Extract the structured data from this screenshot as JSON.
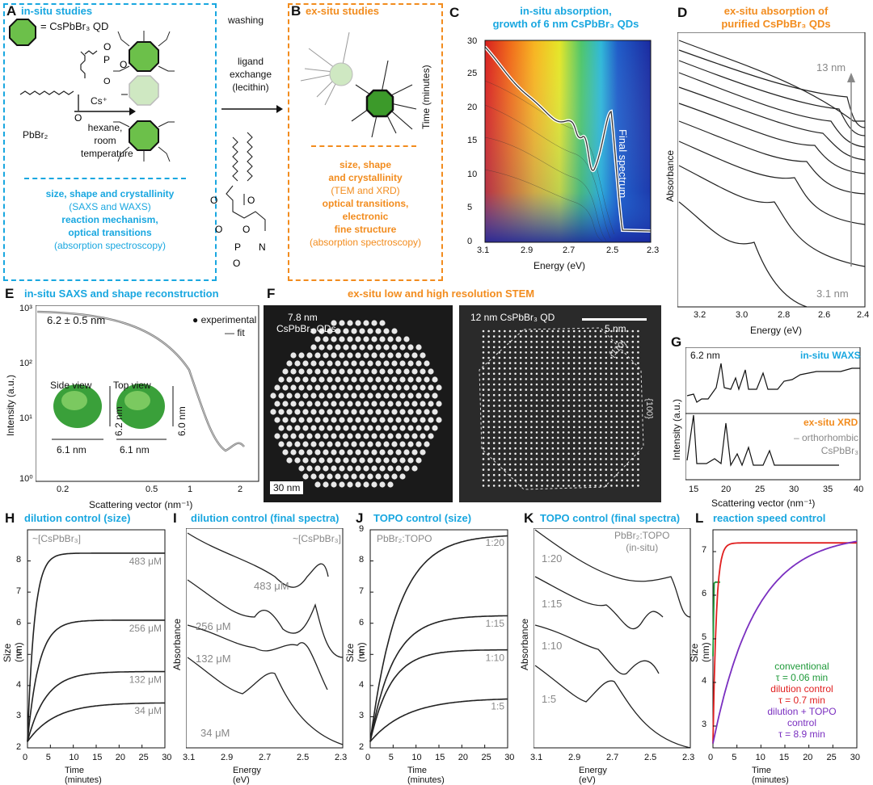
{
  "panelA": {
    "letter": "A",
    "title": "in-situ studies",
    "legend_qd": "= CsPbBr₃ QD",
    "precursor1": "PbBr₂",
    "precursor2": "Cs⁺",
    "conditions": [
      "hexane,",
      "room",
      "temperature"
    ],
    "bottom_bold1": "size, shape and crystallinity",
    "bottom_norm1": "(SAXS and WAXS)",
    "bottom_bold2": "reaction mechanism,",
    "bottom_bold3": "optical transitions",
    "bottom_norm2": "(absorption spectroscopy)"
  },
  "arrowMid": {
    "washing": "washing",
    "ligand1": "ligand",
    "ligand2": "exchange",
    "ligand3": "(lecithin)"
  },
  "panelB": {
    "letter": "B",
    "title": "ex-situ studies",
    "l1": "size, shape",
    "l2": "and crystallinity",
    "l3": "(TEM and XRD)",
    "l4": "optical transitions,",
    "l5": "electronic",
    "l6": "fine structure",
    "l7": "(absorption spectroscopy)"
  },
  "panelC": {
    "letter": "C",
    "title1": "in-situ absorption,",
    "title2": "growth of 6 nm CsPbBr₃ QDs",
    "ylabel": "Time (minutes)",
    "xlabel": "Energy (eV)",
    "annotation": "Final spectrum",
    "xticks": [
      "3.1",
      "2.9",
      "2.7",
      "2.5",
      "2.3"
    ],
    "yticks": [
      "0",
      "5",
      "10",
      "15",
      "20",
      "25",
      "30"
    ]
  },
  "panelD": {
    "letter": "D",
    "title1": "ex-situ absorption of",
    "title2": "purified CsPbBr₃ QDs",
    "ylabel": "Absorbance",
    "xlabel": "Energy (eV)",
    "top_label": "13 nm",
    "bottom_label": "3.1 nm",
    "xticks": [
      "3.2",
      "3.0",
      "2.8",
      "2.6",
      "2.4"
    ]
  },
  "panelE": {
    "letter": "E",
    "title": "in-situ SAXS and shape reconstruction",
    "size": "6.2 ± 0.5 nm",
    "legend_exp": "experimental",
    "legend_fit": "fit",
    "side": "Side view",
    "top": "Top view",
    "d1": "6.2 nm",
    "d2": "6.0 nm",
    "w1": "6.1 nm",
    "w2": "6.1 nm",
    "ylabel": "Intensity (a.u.)",
    "xlabel": "Scattering vector (nm⁻¹)",
    "xticks": [
      "0.2",
      "0.5",
      "1",
      "2"
    ],
    "yticks": [
      "10³",
      "10²",
      "10¹",
      "10⁰"
    ]
  },
  "panelF": {
    "letter": "F",
    "title": "ex-situ low and high resolution STEM",
    "left_label1": "7.8 nm",
    "left_label2": "CsPbBr₃ QDs",
    "scale_left": "30 nm",
    "right_label": "12 nm CsPbBr₃ QD",
    "scale_right": "5 nm",
    "facet1": "{110}",
    "facet2": "{100}"
  },
  "panelG": {
    "letter": "G",
    "size": "6.2 nm",
    "waxs": "in-situ WAXS",
    "xrd": "ex-situ XRD",
    "legend1": "orthorhombic",
    "legend2": "CsPbBr₃",
    "ylabel": "Intensity (a.u.)",
    "xlabel": "Scattering vector (nm⁻¹)",
    "xticks": [
      "15",
      "20",
      "25",
      "30",
      "35",
      "40"
    ]
  },
  "panelH": {
    "letter": "H",
    "title": "dilution control (size)",
    "corner": "~[CsPbBr₃]",
    "ylabel": "Size (nm)",
    "xlabel": "Time (minutes)",
    "xticks": [
      "0",
      "5",
      "10",
      "15",
      "20",
      "25",
      "30"
    ],
    "yticks": [
      "2",
      "3",
      "4",
      "5",
      "6",
      "7",
      "8"
    ],
    "curves": [
      "483 μM",
      "256 μM",
      "132 μM",
      "34 μM"
    ]
  },
  "panelI": {
    "letter": "I",
    "title": "dilution control (final spectra)",
    "corner": "~[CsPbBr₃]",
    "ylabel": "Absorbance",
    "xlabel": "Energy (eV)",
    "xticks": [
      "3.1",
      "2.9",
      "2.7",
      "2.5",
      "2.3"
    ],
    "curves": [
      "483 μM",
      "256 μM",
      "132 μM",
      "34 μM"
    ]
  },
  "panelJ": {
    "letter": "J",
    "title": "TOPO control (size)",
    "corner": "PbBr₂:TOPO",
    "ylabel": "Size (nm)",
    "xlabel": "Time (minutes)",
    "xticks": [
      "0",
      "5",
      "10",
      "15",
      "20",
      "25",
      "30"
    ],
    "yticks": [
      "2",
      "3",
      "4",
      "5",
      "6",
      "7",
      "8",
      "9"
    ],
    "curves": [
      "1:20",
      "1:15",
      "1:10",
      "1:5"
    ]
  },
  "panelK": {
    "letter": "K",
    "title": "TOPO control (final spectra)",
    "corner1": "PbBr₂:TOPO",
    "corner2": "(in-situ)",
    "ylabel": "Absorbance",
    "xlabel": "Energy (eV)",
    "xticks": [
      "3.1",
      "2.9",
      "2.7",
      "2.5",
      "2.3"
    ],
    "curves": [
      "1:20",
      "1:15",
      "1:10",
      "1:5"
    ]
  },
  "panelL": {
    "letter": "L",
    "title": "reaction speed control",
    "ylabel": "Size (nm)",
    "xlabel": "Time (minutes)",
    "xticks": [
      "0",
      "5",
      "10",
      "15",
      "20",
      "25",
      "30"
    ],
    "yticks": [
      "3",
      "4",
      "5",
      "6",
      "7"
    ],
    "leg1": "conventional",
    "leg1t": "τ = 0.06 min",
    "leg2": "dilution control",
    "leg2t": "τ = 0.7 min",
    "leg3": "dilution + TOPO",
    "leg3b": "control",
    "leg3t": "τ = 8.9 min",
    "colors": {
      "green": "#1f9a3a",
      "red": "#e02020",
      "purple": "#7a2fc0"
    }
  },
  "chart_data": [
    {
      "type": "line",
      "title": "dilution control (size)",
      "xlabel": "Time (minutes)",
      "ylabel": "Size (nm)",
      "xlim": [
        0,
        30
      ],
      "ylim": [
        2,
        9
      ],
      "series": [
        {
          "name": "483 μM",
          "final": 8.25,
          "tau": 1.5
        },
        {
          "name": "256 μM",
          "final": 6.1,
          "tau": 2.5
        },
        {
          "name": "132 μM",
          "final": 4.45,
          "tau": 4
        },
        {
          "name": "34 μM",
          "final": 3.45,
          "tau": 6
        }
      ]
    },
    {
      "type": "line",
      "title": "TOPO control (size)",
      "xlabel": "Time (minutes)",
      "ylabel": "Size (nm)",
      "xlim": [
        0,
        30
      ],
      "ylim": [
        2,
        9
      ],
      "series": [
        {
          "name": "1:20",
          "final": 8.85,
          "tau": 6
        },
        {
          "name": "1:15",
          "final": 6.25,
          "tau": 5
        },
        {
          "name": "1:10",
          "final": 5.15,
          "tau": 4.5
        },
        {
          "name": "1:5",
          "final": 3.6,
          "tau": 8
        }
      ]
    },
    {
      "type": "line",
      "title": "reaction speed control",
      "xlabel": "Time (minutes)",
      "ylabel": "Size (nm)",
      "xlim": [
        0,
        30
      ],
      "ylim": [
        2.5,
        7.5
      ],
      "series": [
        {
          "name": "conventional",
          "final": 6.3,
          "tau": 0.06
        },
        {
          "name": "dilution control",
          "final": 7.2,
          "tau": 0.7
        },
        {
          "name": "dilution + TOPO control",
          "final": 7.4,
          "tau": 8.9
        }
      ]
    }
  ]
}
